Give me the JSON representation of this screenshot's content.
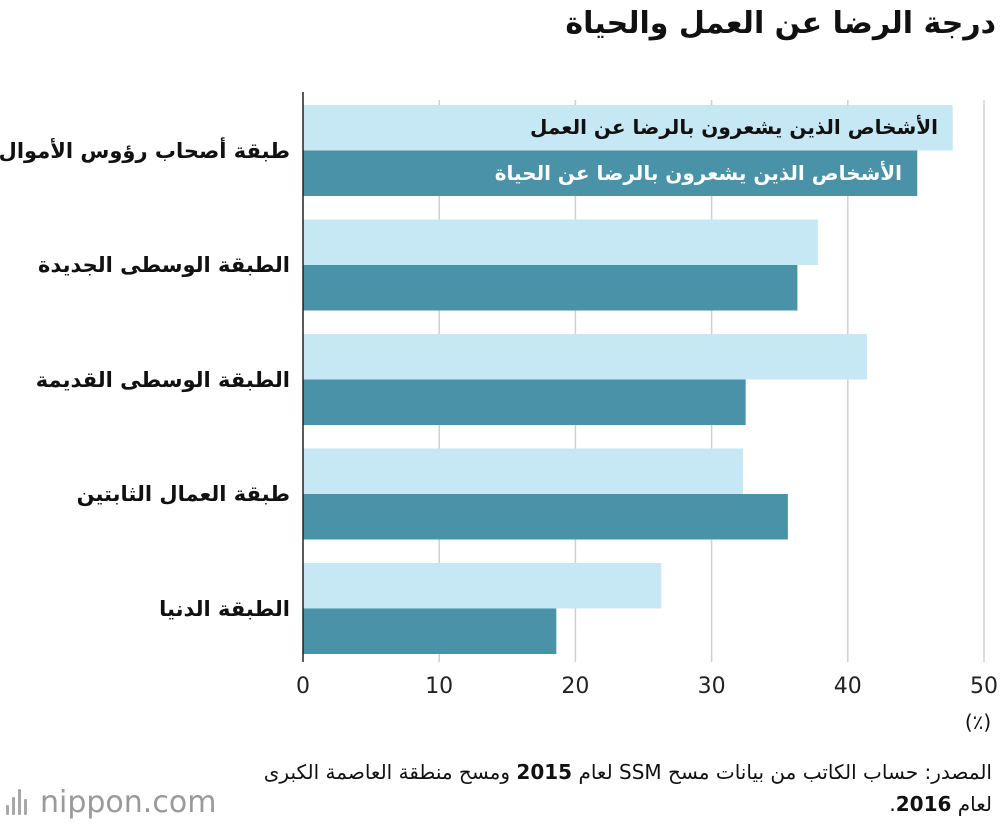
{
  "chart_data": {
    "type": "bar",
    "orientation": "horizontal",
    "title": "درجة الرضا عن العمل والحياة",
    "categories": [
      "طبقة أصحاب رؤوس الأموال",
      "الطبقة الوسطى الجديدة",
      "الطبقة الوسطى القديمة",
      "طبقة العمال الثابتين",
      "الطبقة الدنيا"
    ],
    "series": [
      {
        "name": "الأشخاص الذين يشعرون بالرضا عن العمل",
        "color": "#c5e8f4",
        "values": [
          47.7,
          37.8,
          41.4,
          32.3,
          26.3
        ]
      },
      {
        "name": "الأشخاص الذين يشعرون بالرضا عن الحياة",
        "color": "#4a92a8",
        "values": [
          45.1,
          36.3,
          32.5,
          35.6,
          18.6
        ]
      }
    ],
    "xlim": [
      0,
      50
    ],
    "xticks": [
      "0",
      "10",
      "20",
      "30",
      "40",
      "50"
    ],
    "unit": "(٪)",
    "grid": true,
    "legend": "inline-on-first-bars"
  },
  "source": {
    "part1": "المصدر: حساب الكاتب من بيانات مسح SSM لعام ",
    "year1": "2015",
    "part2": " ومسح منطقة العاصمة الكبرى لعام ",
    "year2": "2016",
    "part3": "."
  },
  "logo": {
    "text": "nippon.com"
  }
}
